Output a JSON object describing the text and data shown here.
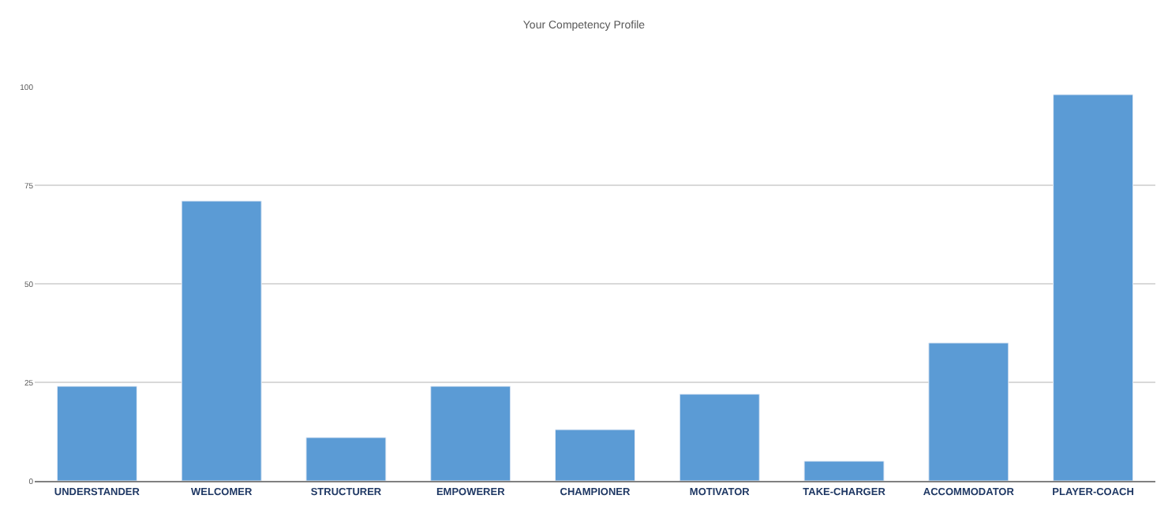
{
  "chart_data": {
    "type": "bar",
    "title": "Your Competency Profile",
    "categories": [
      "UNDERSTANDER",
      "WELCOMER",
      "STRUCTURER",
      "EMPOWERER",
      "CHAMPIONER",
      "MOTIVATOR",
      "TAKE-CHARGER",
      "ACCOMMODATOR",
      "PLAYER-COACH"
    ],
    "values": [
      24,
      71,
      11,
      24,
      13,
      22,
      5,
      35,
      98
    ],
    "color": "#5b9bd5",
    "ylim": [
      0,
      100
    ],
    "yticks": [
      0,
      25,
      50,
      75,
      100
    ],
    "grid": "y",
    "legend": false
  }
}
